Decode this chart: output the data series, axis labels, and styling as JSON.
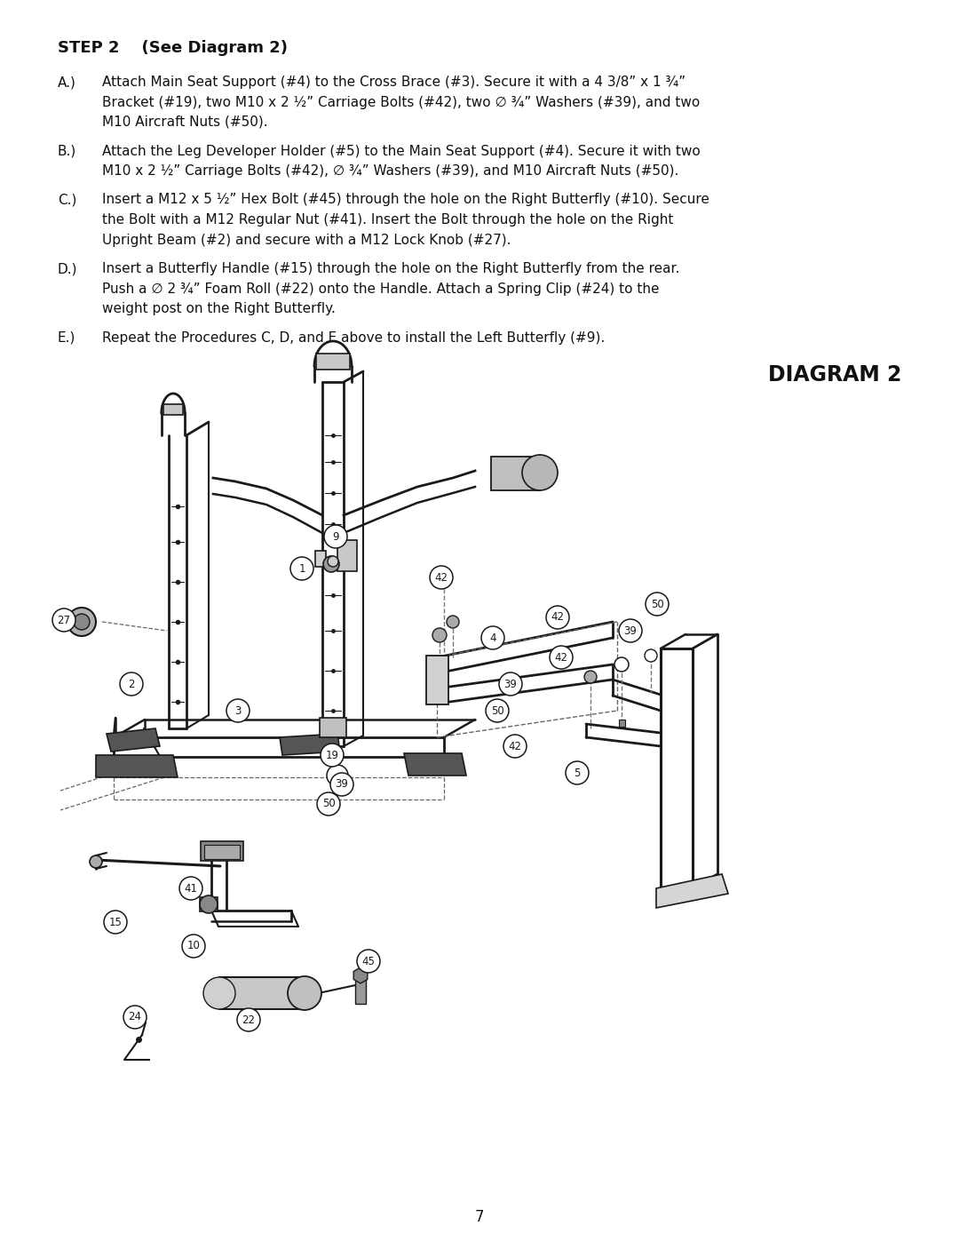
{
  "title": "STEP 2    (See Diagram 2)",
  "diagram_title": "DIAGRAM 2",
  "page_number": "7",
  "instructions": [
    {
      "letter": "A.)",
      "text1": "Attach Main Seat Support (#4) to the Cross Brace (#3). Secure it with a 4 3/8” x 1 ¾”",
      "text2": "Bracket (#19), two M10 x 2 ½” Carriage Bolts (#42), two ∅ ¾” Washers (#39), and two",
      "text3": "M10 Aircraft Nuts (#50)."
    },
    {
      "letter": "B.)",
      "text1": "Attach the Leg Developer Holder (#5) to the Main Seat Support (#4). Secure it with two",
      "text2": "M10 x 2 ½” Carriage Bolts (#42), ∅ ¾” Washers (#39), and M10 Aircraft Nuts (#50).",
      "text3": ""
    },
    {
      "letter": "C.)",
      "text1": "Insert a M12 x 5 ½” Hex Bolt (#45) through the hole on the Right Butterfly (#10). Secure",
      "text2": "the Bolt with a M12 Regular Nut (#41). Insert the Bolt through the hole on the Right",
      "text3": "Upright Beam (#2) and secure with a M12 Lock Knob (#27)."
    },
    {
      "letter": "D.)",
      "text1": "Insert a Butterfly Handle (#15) through the hole on the Right Butterfly from the rear.",
      "text2": "Push a ∅ 2 ¾” Foam Roll (#22) onto the Handle. Attach a Spring Clip (#24) to the",
      "text3": "weight post on the Right Butterfly."
    },
    {
      "letter": "E.)",
      "text1": "Repeat the Procedures C, D, and E above to install the Left Butterfly (#9).",
      "text2": "",
      "text3": ""
    }
  ],
  "bg": "#ffffff",
  "fg": "#111111",
  "dg": "#1a1a1a"
}
